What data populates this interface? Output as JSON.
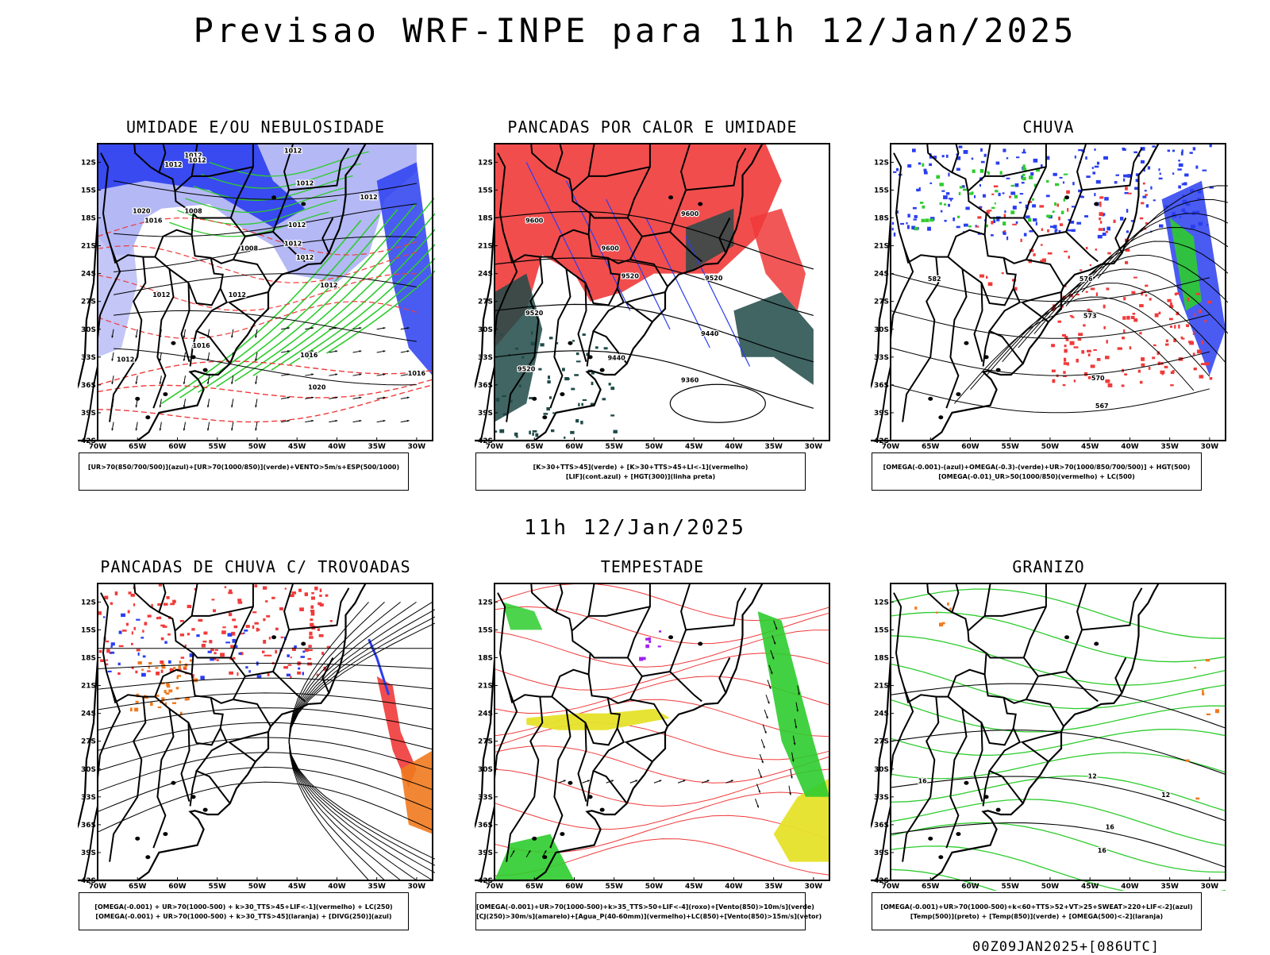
{
  "header": {
    "title": "Previsao WRF-INPE  para 11h 12/Jan/2025"
  },
  "middle": {
    "title": "11h 12/Jan/2025"
  },
  "footer": {
    "run_label": "00Z09JAN2025+[086UTC]"
  },
  "axes": {
    "lat_labels": [
      "12S",
      "15S",
      "18S",
      "21S",
      "24S",
      "27S",
      "30S",
      "33S",
      "36S",
      "39S",
      "42S"
    ],
    "lon_labels": [
      "70W",
      "65W",
      "60W",
      "55W",
      "50W",
      "45W",
      "40W",
      "35W",
      "30W"
    ],
    "lat_range_deg": [
      -42,
      -10
    ],
    "lon_range_deg": [
      -70,
      -28
    ]
  },
  "colors": {
    "blue": "#2a3ef0",
    "light_blue": "#b4b8f5",
    "green": "#2ecc2e",
    "red": "#f03a3a",
    "dark_teal": "#1e4a48",
    "orange": "#f07a1e",
    "yellow": "#e6e12a",
    "purple": "#a020f0"
  },
  "chart_data": [
    {
      "type": "map",
      "title": "UMIDADE E/OU NEBULOSIDADE",
      "legend": [
        "[UR>70(850/700/500)](azul)+[UR>70(1000/850)](verde)+VENTO>5m/s+ESP(500/1000)"
      ],
      "contour_labels": [
        {
          "text": "1012",
          "lon": -58,
          "lat": -11.5
        },
        {
          "text": "1012",
          "lon": -60.5,
          "lat": -12.5
        },
        {
          "text": "1012",
          "lon": -57.5,
          "lat": -12
        },
        {
          "text": "1012",
          "lon": -45.5,
          "lat": -11
        },
        {
          "text": "1012",
          "lon": -44,
          "lat": -14.5
        },
        {
          "text": "1012",
          "lon": -36,
          "lat": -16
        },
        {
          "text": "1008",
          "lon": -58,
          "lat": -17.5
        },
        {
          "text": "1016",
          "lon": -63,
          "lat": -18.5
        },
        {
          "text": "1020",
          "lon": -64.5,
          "lat": -17.5
        },
        {
          "text": "1012",
          "lon": -45,
          "lat": -19
        },
        {
          "text": "1012",
          "lon": -45.5,
          "lat": -21
        },
        {
          "text": "1008",
          "lon": -51,
          "lat": -21.5
        },
        {
          "text": "1012",
          "lon": -44,
          "lat": -22.5
        },
        {
          "text": "1012",
          "lon": -41,
          "lat": -25.5
        },
        {
          "text": "1012",
          "lon": -52.5,
          "lat": -26.5
        },
        {
          "text": "1012",
          "lon": -62,
          "lat": -26.5
        },
        {
          "text": "1016",
          "lon": -57,
          "lat": -32
        },
        {
          "text": "1016",
          "lon": -43.5,
          "lat": -33
        },
        {
          "text": "1012",
          "lon": -66.5,
          "lat": -33.5
        },
        {
          "text": "1020",
          "lon": -42.5,
          "lat": -36.5
        },
        {
          "text": "1016",
          "lon": -30,
          "lat": -35
        }
      ]
    },
    {
      "type": "map",
      "title": "PANCADAS POR CALOR E UMIDADE",
      "legend": [
        "[K>30+TTS>45](verde) + [K>30+TTS>45+LI<-1](vermelho)",
        "[LIF](cont.azul) + [HGT(300)](linha preta)"
      ],
      "contour_labels": [
        {
          "text": "9600",
          "lon": -65,
          "lat": -18.5
        },
        {
          "text": "9600",
          "lon": -45.5,
          "lat": -17.8
        },
        {
          "text": "9600",
          "lon": -55.5,
          "lat": -21.5
        },
        {
          "text": "9520",
          "lon": -53,
          "lat": -24.5
        },
        {
          "text": "9520",
          "lon": -42.5,
          "lat": -24.7
        },
        {
          "text": "9520",
          "lon": -65,
          "lat": -28.5
        },
        {
          "text": "9440",
          "lon": -43,
          "lat": -30.7
        },
        {
          "text": "9440",
          "lon": -54.7,
          "lat": -33.3
        },
        {
          "text": "9520",
          "lon": -66,
          "lat": -34.5
        },
        {
          "text": "9360",
          "lon": -45.5,
          "lat": -35.7
        }
      ]
    },
    {
      "type": "map",
      "title": "CHUVA",
      "legend": [
        "[OMEGA(-0.001)-(azul)+OMEGA(-0.3)-(verde)+UR>70(1000/850/700/500)] + HGT(500)",
        "[OMEGA(-0.01)_UR>50(1000/850)(vermelho) + LC(500)"
      ],
      "contour_labels": [
        {
          "text": "582",
          "lon": -64.5,
          "lat": -24.8
        },
        {
          "text": "576",
          "lon": -45.5,
          "lat": -24.8
        },
        {
          "text": "573",
          "lon": -45,
          "lat": -28.8
        },
        {
          "text": "570",
          "lon": -44,
          "lat": -35.5
        },
        {
          "text": "567",
          "lon": -43.5,
          "lat": -38.5
        }
      ]
    },
    {
      "type": "map",
      "title": "PANCADAS DE CHUVA C/ TROVOADAS",
      "legend": [
        "[OMEGA(-0.001) + UR>70(1000-500) + k>30_TTS>45+LIF<-1](vermelho) + LC(250)",
        "[OMEGA(-0.001) + UR>70(1000-500) + k>30_TTS>45](laranja) + [DIVG(250)](azul)"
      ],
      "contour_labels": []
    },
    {
      "type": "map",
      "title": "TEMPESTADE",
      "legend": [
        "[OMEGA(-0.001)+UR>70(1000-500)+k>35_TTS>50+LIF<-4](roxo)+[Vento(850)>10m/s](verde)",
        "[CJ(250)>30m/s](amarelo)+[Agua_P(40-60mm)](vermelho)+LC(850)+[Vento(850)>15m/s](vetor)"
      ],
      "contour_labels": []
    },
    {
      "type": "map",
      "title": "GRANIZO",
      "legend": [
        "[OMEGA(-0.001)+UR>70(1000-500)+k<60+TTS>52+VT>25+SWEAT>220+LIF<-2](azul)",
        "[Temp(500)](preto) + [Temp(850)](verde) + [OMEGA(500)<-2](laranja)"
      ],
      "contour_labels": [
        {
          "text": "12",
          "lon": -44.7,
          "lat": -31
        },
        {
          "text": "16",
          "lon": -66,
          "lat": -31.5
        },
        {
          "text": "12",
          "lon": -35.5,
          "lat": -33
        },
        {
          "text": "16",
          "lon": -42.5,
          "lat": -36.5
        },
        {
          "text": "16",
          "lon": -43.5,
          "lat": -39
        }
      ]
    }
  ]
}
